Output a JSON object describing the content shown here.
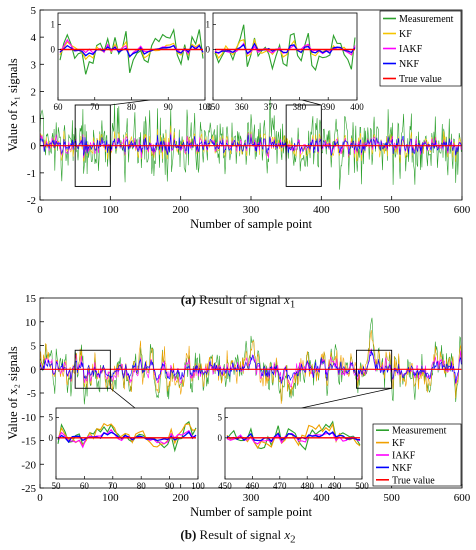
{
  "panels": [
    {
      "caption": {
        "label": "(a)",
        "text": "Result of signal",
        "symbol": "x",
        "subscript": "1"
      },
      "chart_data": {
        "type": "line",
        "xlabel": "Number of sample point",
        "ylabel": "Value of x₁ signals",
        "xlim": [
          0,
          600
        ],
        "ylim": [
          -2,
          5
        ],
        "xticks": [
          "0",
          "100",
          "200",
          "300",
          "400",
          "500",
          "600"
        ],
        "yticks": [
          "-2",
          "-1",
          "0",
          "1",
          "2",
          "3",
          "4",
          "5"
        ],
        "grid": false,
        "legend_position": "top-right",
        "series": [
          {
            "name": "Measurement",
            "color": "#2ca02c"
          },
          {
            "name": "KF",
            "color": "#f5c400"
          },
          {
            "name": "IAKF",
            "color": "#ff00ff"
          },
          {
            "name": "NKF",
            "color": "#0000ff"
          },
          {
            "name": "True value",
            "color": "#ff0000"
          }
        ],
        "zoom_boxes": [
          {
            "x_range": [
              50,
              100
            ],
            "y_range": [
              -1.5,
              1.5
            ]
          },
          {
            "x_range": [
              350,
              400
            ],
            "y_range": [
              -1.5,
              1.5
            ]
          }
        ],
        "insets": [
          {
            "xlim": [
              60,
              100
            ],
            "xticks": [
              "60",
              "70",
              "80",
              "90",
              "100"
            ],
            "yticks": [
              "0",
              "1"
            ]
          },
          {
            "xlim": [
              350,
              400
            ],
            "xticks": [
              "350",
              "360",
              "370",
              "380",
              "390",
              "400"
            ],
            "yticks": [
              "0",
              "1"
            ]
          }
        ],
        "noise_levels": {
          "Measurement": 1.2,
          "KF": 0.5,
          "IAKF": 0.35,
          "NKF": 0.3,
          "True value": 0
        }
      }
    },
    {
      "caption": {
        "label": "(b)",
        "text": "Result of signal",
        "symbol": "x",
        "subscript": "2"
      },
      "chart_data": {
        "type": "line",
        "xlabel": "Number of sample point",
        "ylabel": "Value of x₂ signals",
        "xlim": [
          0,
          600
        ],
        "ylim": [
          -25,
          15
        ],
        "xticks": [
          "0",
          "100",
          "200",
          "300",
          "400",
          "500",
          "600"
        ],
        "yticks": [
          "-25",
          "-20",
          "-15",
          "-10",
          "-5",
          "0",
          "5",
          "10",
          "15"
        ],
        "grid": false,
        "legend_position": "bottom-right",
        "series": [
          {
            "name": "Measurement",
            "color": "#2ca02c"
          },
          {
            "name": "KF",
            "color": "#f0a000"
          },
          {
            "name": "IAKF",
            "color": "#ff00ff"
          },
          {
            "name": "NKF",
            "color": "#0000ff"
          },
          {
            "name": "True value",
            "color": "#ff0000"
          }
        ],
        "zoom_boxes": [
          {
            "x_range": [
              50,
              100
            ],
            "y_range": [
              -4,
              4
            ]
          },
          {
            "x_range": [
              450,
              500
            ],
            "y_range": [
              -4,
              4
            ]
          }
        ],
        "insets": [
          {
            "xlim": [
              50,
              100
            ],
            "xticks": [
              "50",
              "60",
              "70",
              "80",
              "90",
              "100"
            ],
            "yticks": [
              "0",
              "5"
            ]
          },
          {
            "xlim": [
              450,
              500
            ],
            "xticks": [
              "450",
              "460",
              "470",
              "480",
              "490",
              "500"
            ],
            "yticks": [
              "0",
              "5"
            ]
          }
        ],
        "noise_levels": {
          "Measurement": 5.5,
          "KF": 4.5,
          "IAKF": 2.5,
          "NKF": 2.0,
          "True value": 0
        }
      }
    }
  ]
}
